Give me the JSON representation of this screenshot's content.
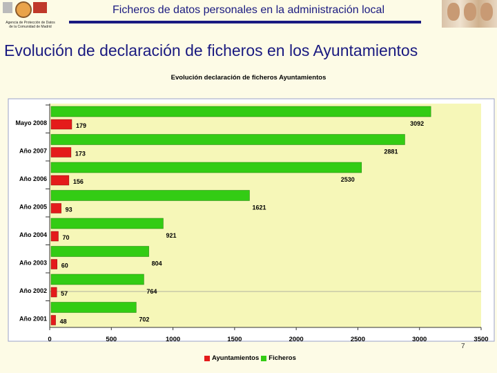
{
  "header": {
    "title": "Ficheros de datos personales en la administración local",
    "agency": "Agencia de Protección de Datos de la Comunidad de Madrid"
  },
  "slide_title": "Evolución de declaración de ficheros en los Ayuntamientos",
  "page_number": "7",
  "colors": {
    "ayuntamientos": "#e41b1b",
    "ficheros": "#33cc14",
    "plot_bg": "#f6f7b8",
    "title_blue": "#1a1a80"
  },
  "chart_data": {
    "type": "bar",
    "orientation": "horizontal",
    "title": "Evolución declaración de ficheros Ayuntamientos",
    "categories": [
      "Mayo 2008",
      "Año 2007",
      "Año 2006",
      "Año 2005",
      "Año 2004",
      "Año 2003",
      "Año 2002",
      "Año 2001"
    ],
    "series": [
      {
        "name": "Ayuntamientos",
        "values": [
          179,
          173,
          156,
          93,
          70,
          60,
          57,
          48
        ]
      },
      {
        "name": "Ficheros",
        "values": [
          3092,
          2881,
          2530,
          1621,
          921,
          804,
          764,
          702
        ]
      }
    ],
    "xlim": [
      0,
      3500
    ],
    "xticks": [
      0,
      500,
      1000,
      1500,
      2000,
      2500,
      3000,
      3500
    ],
    "legend": "bottom",
    "grid": false
  }
}
